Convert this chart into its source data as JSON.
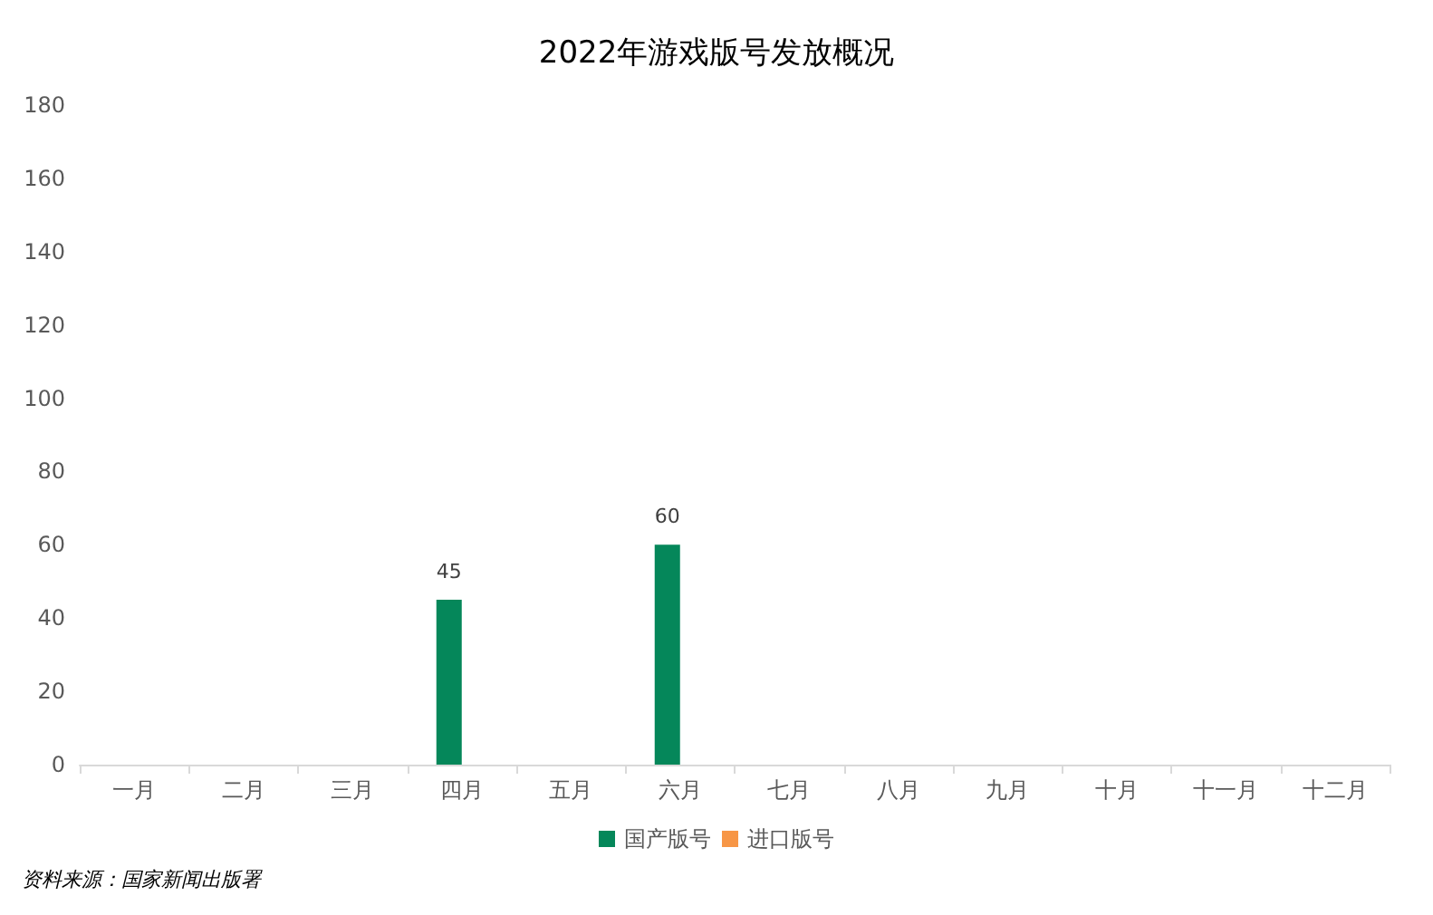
{
  "chart_data": {
    "type": "bar",
    "title": "2022年游戏版号发放概况",
    "categories": [
      "一月",
      "二月",
      "三月",
      "四月",
      "五月",
      "六月",
      "七月",
      "八月",
      "九月",
      "十月",
      "十一月",
      "十二月"
    ],
    "series": [
      {
        "name": "国产版号",
        "color": "#05875a",
        "values": [
          null,
          null,
          null,
          45,
          null,
          60,
          null,
          null,
          null,
          null,
          null,
          null
        ],
        "value_labels": [
          null,
          null,
          null,
          "45",
          null,
          "60",
          null,
          null,
          null,
          null,
          null,
          null
        ]
      },
      {
        "name": "进口版号",
        "color": "#f79646",
        "values": [
          null,
          null,
          null,
          null,
          null,
          null,
          null,
          null,
          null,
          null,
          null,
          null
        ]
      }
    ],
    "ylim": [
      0,
      180
    ],
    "yticks": [
      0,
      20,
      40,
      60,
      80,
      100,
      120,
      140,
      160,
      180
    ],
    "grid": false,
    "legend": "bottom",
    "annotations": [
      "资料来源：国家新闻出版署"
    ]
  }
}
